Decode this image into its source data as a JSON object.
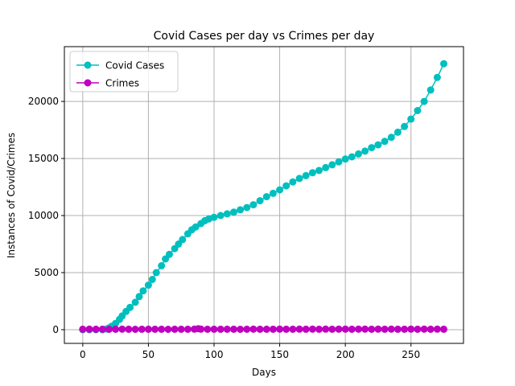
{
  "chart_data": {
    "type": "line",
    "title": "Covid Cases per day vs Crimes per day",
    "xlabel": "Days",
    "ylabel": "Instances of Covid/Crimes",
    "xlim": [
      -14,
      290
    ],
    "ylim": [
      -1200,
      24800
    ],
    "x_ticks": [
      0,
      50,
      100,
      150,
      200,
      250
    ],
    "y_ticks": [
      0,
      5000,
      10000,
      15000,
      20000
    ],
    "grid": true,
    "legend_position": "top-left",
    "series": [
      {
        "name": "Covid Cases",
        "color": "#00bfbf",
        "marker": "circle",
        "points": [
          [
            0,
            0
          ],
          [
            5,
            0
          ],
          [
            10,
            0
          ],
          [
            15,
            0
          ],
          [
            18,
            60
          ],
          [
            20,
            150
          ],
          [
            22,
            300
          ],
          [
            25,
            550
          ],
          [
            28,
            900
          ],
          [
            30,
            1200
          ],
          [
            33,
            1600
          ],
          [
            36,
            1950
          ],
          [
            40,
            2400
          ],
          [
            43,
            2900
          ],
          [
            46,
            3400
          ],
          [
            50,
            3900
          ],
          [
            53,
            4400
          ],
          [
            56,
            5000
          ],
          [
            60,
            5600
          ],
          [
            63,
            6200
          ],
          [
            66,
            6600
          ],
          [
            70,
            7100
          ],
          [
            73,
            7500
          ],
          [
            76,
            7900
          ],
          [
            80,
            8400
          ],
          [
            83,
            8750
          ],
          [
            86,
            9000
          ],
          [
            90,
            9300
          ],
          [
            93,
            9550
          ],
          [
            96,
            9700
          ],
          [
            100,
            9850
          ],
          [
            105,
            10000
          ],
          [
            110,
            10150
          ],
          [
            115,
            10300
          ],
          [
            120,
            10500
          ],
          [
            125,
            10700
          ],
          [
            130,
            10950
          ],
          [
            135,
            11300
          ],
          [
            140,
            11650
          ],
          [
            145,
            11950
          ],
          [
            150,
            12250
          ],
          [
            155,
            12600
          ],
          [
            160,
            12950
          ],
          [
            165,
            13250
          ],
          [
            170,
            13500
          ],
          [
            175,
            13750
          ],
          [
            180,
            13950
          ],
          [
            185,
            14200
          ],
          [
            190,
            14450
          ],
          [
            195,
            14700
          ],
          [
            200,
            14950
          ],
          [
            205,
            15150
          ],
          [
            210,
            15400
          ],
          [
            215,
            15650
          ],
          [
            220,
            15950
          ],
          [
            225,
            16200
          ],
          [
            230,
            16500
          ],
          [
            235,
            16850
          ],
          [
            240,
            17300
          ],
          [
            245,
            17800
          ],
          [
            250,
            18450
          ],
          [
            255,
            19200
          ],
          [
            260,
            20000
          ],
          [
            265,
            21000
          ],
          [
            270,
            22100
          ],
          [
            275,
            23300
          ]
        ]
      },
      {
        "name": "Crimes",
        "color": "#bf00bf",
        "marker": "circle",
        "points": [
          [
            0,
            40
          ],
          [
            5,
            45
          ],
          [
            10,
            38
          ],
          [
            15,
            42
          ],
          [
            20,
            35
          ],
          [
            25,
            40
          ],
          [
            30,
            44
          ],
          [
            35,
            38
          ],
          [
            40,
            36
          ],
          [
            45,
            40
          ],
          [
            50,
            42
          ],
          [
            55,
            37
          ],
          [
            60,
            40
          ],
          [
            65,
            35
          ],
          [
            70,
            38
          ],
          [
            75,
            42
          ],
          [
            80,
            40
          ],
          [
            85,
            45
          ],
          [
            88,
            90
          ],
          [
            90,
            50
          ],
          [
            95,
            42
          ],
          [
            100,
            40
          ],
          [
            105,
            38
          ],
          [
            110,
            42
          ],
          [
            115,
            40
          ],
          [
            120,
            36
          ],
          [
            125,
            40
          ],
          [
            130,
            44
          ],
          [
            135,
            40
          ],
          [
            140,
            42
          ],
          [
            145,
            40
          ],
          [
            150,
            45
          ],
          [
            155,
            40
          ],
          [
            160,
            42
          ],
          [
            165,
            44
          ],
          [
            170,
            40
          ],
          [
            175,
            46
          ],
          [
            180,
            42
          ],
          [
            185,
            44
          ],
          [
            190,
            40
          ],
          [
            195,
            46
          ],
          [
            200,
            44
          ],
          [
            205,
            42
          ],
          [
            210,
            46
          ],
          [
            215,
            44
          ],
          [
            220,
            40
          ],
          [
            225,
            45
          ],
          [
            230,
            42
          ],
          [
            235,
            44
          ],
          [
            240,
            40
          ],
          [
            245,
            43
          ],
          [
            250,
            45
          ],
          [
            255,
            42
          ],
          [
            260,
            44
          ],
          [
            265,
            40
          ],
          [
            270,
            45
          ],
          [
            275,
            42
          ]
        ]
      }
    ]
  }
}
